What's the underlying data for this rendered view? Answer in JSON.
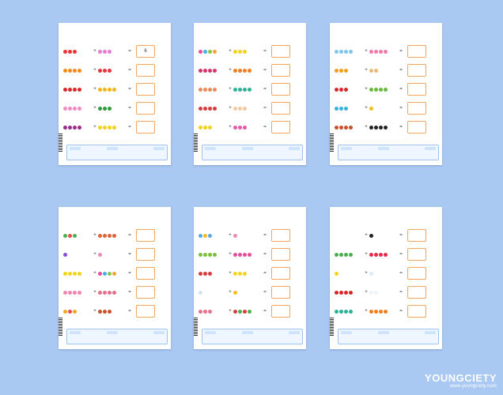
{
  "brand": {
    "name": "YOUNGCIETY",
    "url": "www.youngciety.com"
  },
  "sheets": [
    {
      "answer_example": "6"
    },
    {
      "answer_example": ""
    },
    {
      "answer_example": ""
    },
    {
      "answer_example": ""
    },
    {
      "answer_example": ""
    },
    {
      "answer_example": ""
    }
  ],
  "common": {
    "plus": "+",
    "equals": "="
  }
}
